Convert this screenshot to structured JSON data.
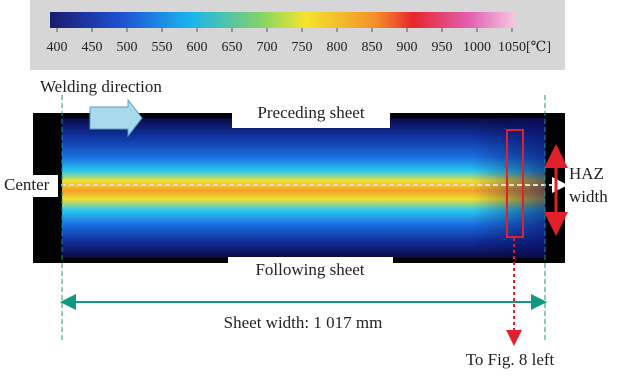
{
  "colorbar": {
    "range": [
      400,
      1050
    ],
    "ticks": [
      400,
      450,
      500,
      550,
      600,
      650,
      700,
      750,
      800,
      850,
      900,
      950,
      1000,
      1050
    ],
    "unit": "[℃]"
  },
  "labels": {
    "welding_direction": "Welding direction",
    "preceding": "Preceding sheet",
    "following": "Following sheet",
    "center": "Center",
    "haz_line1": "HAZ",
    "haz_line2": "width",
    "sheet_width": "Sheet width: 1 017 mm",
    "to_fig": "To Fig. 8 left"
  }
}
